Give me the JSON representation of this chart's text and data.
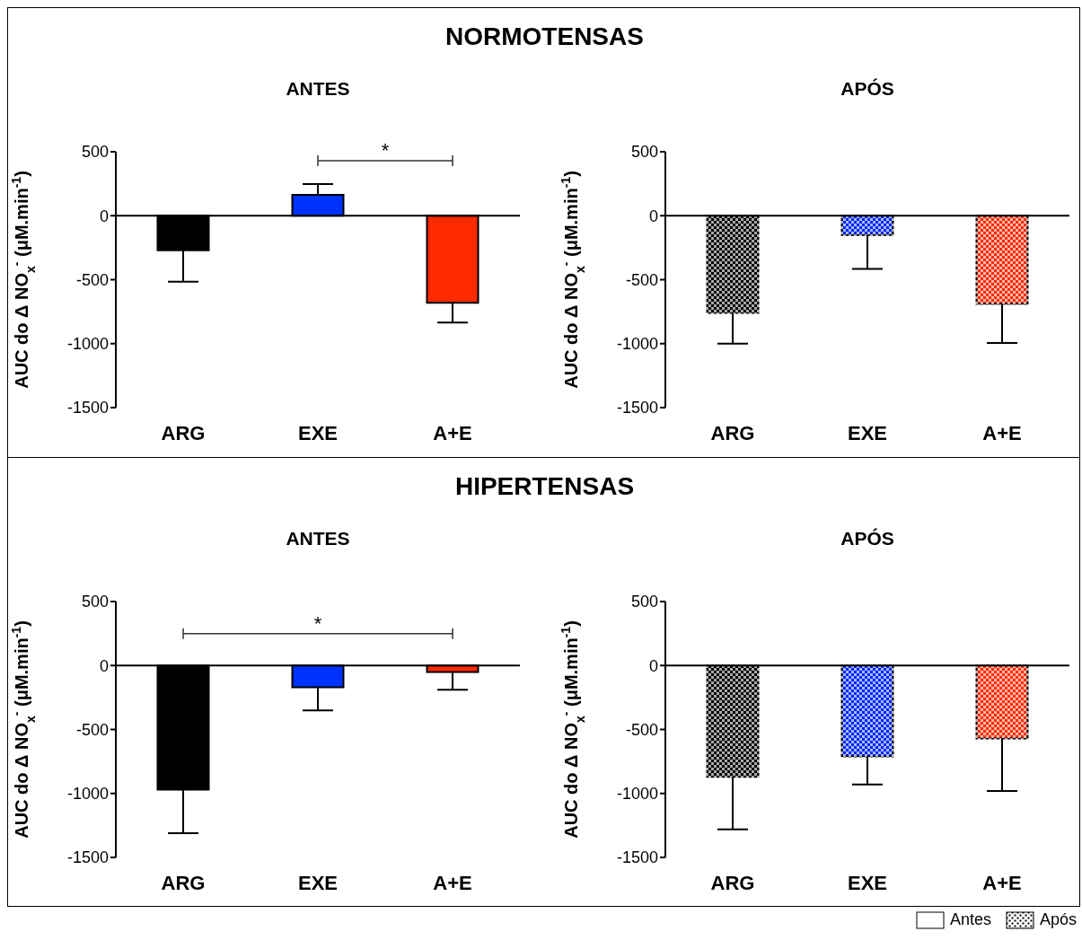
{
  "chart_data": [
    {
      "type": "bar",
      "title": "NORMOTENSAS",
      "subtitle": "ANTES",
      "ylabel": "AUC do Δ NO$_{x}$$^{-}$ (μM.min$^{-1}$)",
      "categories": [
        "ARG",
        "EXE",
        "A+E"
      ],
      "ylim": [
        -1500,
        500
      ],
      "yticks": [
        -1500,
        -1000,
        -500,
        0,
        500
      ],
      "annotations": [
        "*"
      ],
      "series": [
        {
          "colors": [
            "#000000",
            "#0033ff",
            "#ff2a00"
          ],
          "values": [
            -270,
            164,
            -680
          ],
          "errors": [
            [
              -515,
              -270
            ],
            [
              164,
              247
            ],
            [
              -835,
              -680
            ]
          ]
        }
      ]
    },
    {
      "type": "bar",
      "subtitle": "APÓS",
      "ylabel": "AUC do Δ NO$_{x}$$^{-}$ (μM.min$^{-1}$)",
      "categories": [
        "ARG",
        "EXE",
        "A+E"
      ],
      "ylim": [
        -1500,
        500
      ],
      "yticks": [
        -1500,
        -1000,
        -500,
        0,
        500
      ],
      "series": [
        {
          "color": "#000000",
          "colors": [
            "#000000",
            "#0026ff",
            "#ff2a00"
          ],
          "values": [
            -760,
            -150,
            -690
          ],
          "errors": [
            [
              -1000,
              -760
            ],
            [
              -415,
              -150
            ],
            [
              -995,
              -690
            ]
          ]
        }
      ]
    },
    {
      "type": "bar",
      "title": "HIPERTENSAS",
      "subtitle": "ANTES",
      "ylabel": "AUC do Δ NO$_{x}$$^{-}$ (μM.min$^{-1}$)",
      "categories": [
        "ARG",
        "EXE",
        "A+E"
      ],
      "ylim": [
        -1500,
        500
      ],
      "yticks": [
        -1500,
        -1000,
        -500,
        0,
        500
      ],
      "annotations": [
        "*"
      ],
      "legend": "bottom right",
      "series": [
        {
          "name": "Antes",
          "color": "#ffffff",
          "colors": [
            "#000000",
            "#0033ff",
            "#ff2a00"
          ],
          "values": [
            -970,
            -170,
            -50
          ],
          "errors": [
            [
              -1310,
              -970
            ],
            [
              -350,
              -170
            ],
            [
              -190,
              -50
            ]
          ]
        }
      ]
    },
    {
      "type": "bar",
      "subtitle": "APÓS",
      "ylabel": "AUC do Δ NO$_{x}$$^{-}$ (μM.min$^{-1}$)",
      "categories": [
        "ARG",
        "EXE",
        "A+E"
      ],
      "ylim": [
        -1500,
        500
      ],
      "yticks": [
        -1500,
        -1000,
        -500,
        0,
        500
      ],
      "legend": "bottom right",
      "series": [
        {
          "name": "Após",
          "color": "#000000",
          "colors": [
            "#000000",
            "#0026ff",
            "#ff2a00"
          ],
          "values": [
            -870,
            -710,
            -570
          ],
          "errors": [
            [
              -1280,
              -870
            ],
            [
              -930,
              -710
            ],
            [
              -980,
              -570
            ]
          ]
        }
      ]
    }
  ]
}
